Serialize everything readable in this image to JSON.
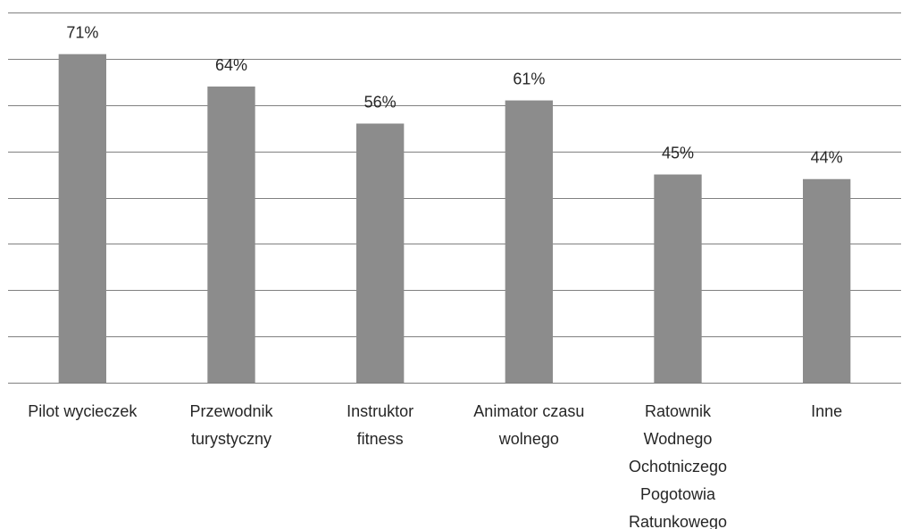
{
  "chart_data": {
    "type": "bar",
    "categories": [
      "Pilot wycieczek",
      "Przewodnik\nturystyczny",
      "Instruktor\nfitness",
      "Animator czasu\nwolnego",
      "Ratownik\nWodnego\nOchotniczego\nPogotowia\nRatunkowego",
      "Inne"
    ],
    "values": [
      71,
      64,
      56,
      61,
      45,
      44
    ],
    "value_labels": [
      "71%",
      "64%",
      "56%",
      "61%",
      "45%",
      "44%"
    ],
    "color": "#8c8c8c",
    "ylim": [
      0,
      80
    ],
    "yticks": [
      0,
      10,
      20,
      30,
      40,
      50,
      60,
      70,
      80
    ],
    "grid": true
  }
}
